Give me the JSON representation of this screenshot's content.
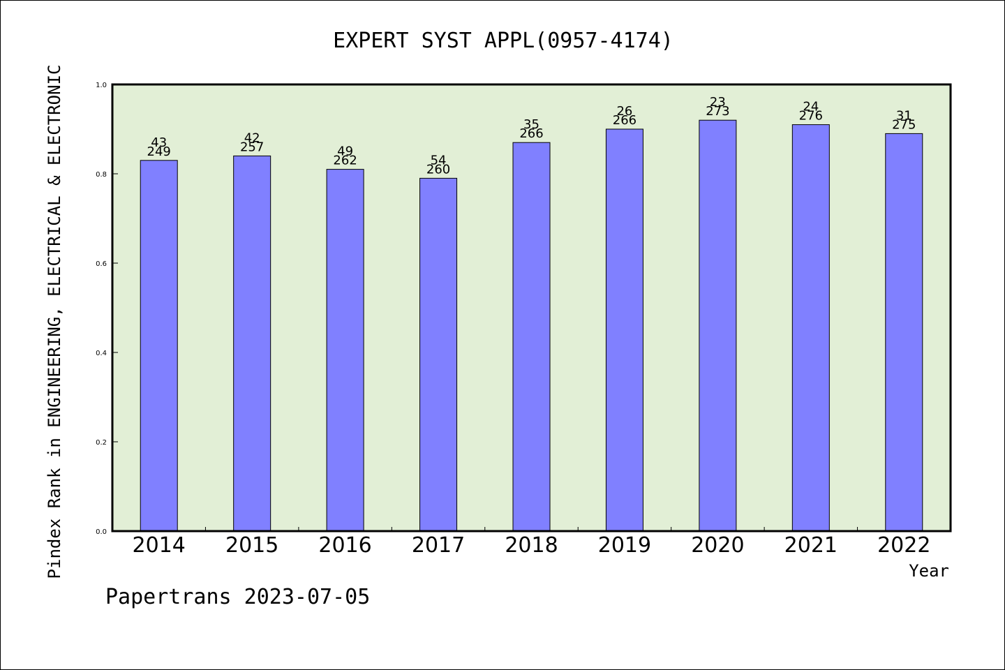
{
  "chart_data": {
    "type": "bar",
    "title": "EXPERT SYST APPL(0957-4174)",
    "xlabel": "Year",
    "ylabel": "Pindex Rank in ENGINEERING, ELECTRICAL & ELECTRONIC",
    "categories": [
      "2014",
      "2015",
      "2016",
      "2017",
      "2018",
      "2019",
      "2020",
      "2021",
      "2022"
    ],
    "values": [
      0.83,
      0.84,
      0.81,
      0.79,
      0.87,
      0.9,
      0.92,
      0.91,
      0.89
    ],
    "rank_labels": [
      "43",
      "42",
      "49",
      "54",
      "35",
      "26",
      "23",
      "24",
      "31"
    ],
    "total_labels": [
      "249",
      "257",
      "262",
      "260",
      "266",
      "266",
      "273",
      "276",
      "275"
    ],
    "ylim": [
      0,
      1.0
    ],
    "yticks": [
      "0.0",
      "0.2",
      "0.4",
      "0.6",
      "0.8",
      "1.0"
    ],
    "grid": false,
    "colors": {
      "bar": "#8080ff",
      "plot_background": "#e2efd6"
    }
  },
  "footer": "Papertrans 2023-07-05"
}
